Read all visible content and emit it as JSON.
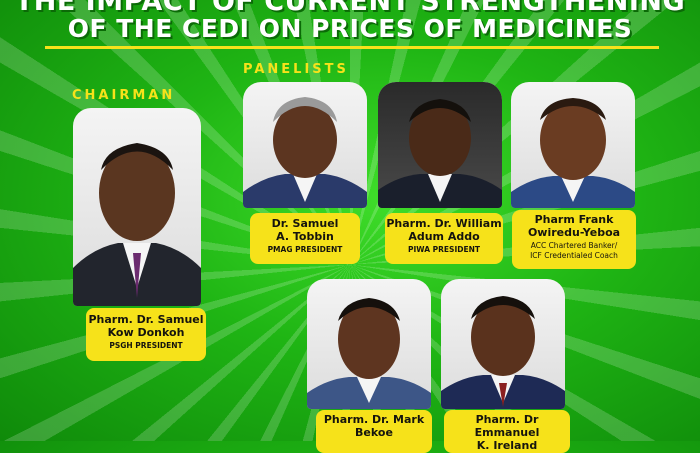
{
  "header": {
    "title_line1": "THE IMPACT OF CURRENT STRENGTHENING",
    "title_line2": "OF THE CEDI ON PRICES OF MEDICINES"
  },
  "labels": {
    "chairman": "CHAIRMAN",
    "panelists": "PANELISTS"
  },
  "chairman": {
    "name_line1": "Pharm. Dr. Samuel",
    "name_line2": "Kow Donkoh",
    "role": "PSGH PRESIDENT"
  },
  "panelists": [
    {
      "name_line1": "Dr. Samuel",
      "name_line2": "A. Tobbin",
      "role_line1": "PMAG PRESIDENT",
      "role_line2": ""
    },
    {
      "name_line1": "Pharm. Dr. William",
      "name_line2": "Adum Addo",
      "role_line1": "PIWA PRESIDENT",
      "role_line2": ""
    },
    {
      "name_line1": "Pharm Frank",
      "name_line2": "Owiredu-Yeboa",
      "role_line1": "ACC Chartered Banker/",
      "role_line2": "ICF Credentialed Coach"
    },
    {
      "name_line1": "Pharm. Dr. Mark",
      "name_line2": "Bekoe",
      "role_line1": "",
      "role_line2": ""
    },
    {
      "name_line1": "Pharm. Dr Emmanuel",
      "name_line2": "K. Ireland",
      "role_line1": "",
      "role_line2": ""
    }
  ],
  "colors": {
    "background": "#1fb514",
    "accent_yellow": "#f6e21a",
    "title_text": "#ffffff"
  }
}
